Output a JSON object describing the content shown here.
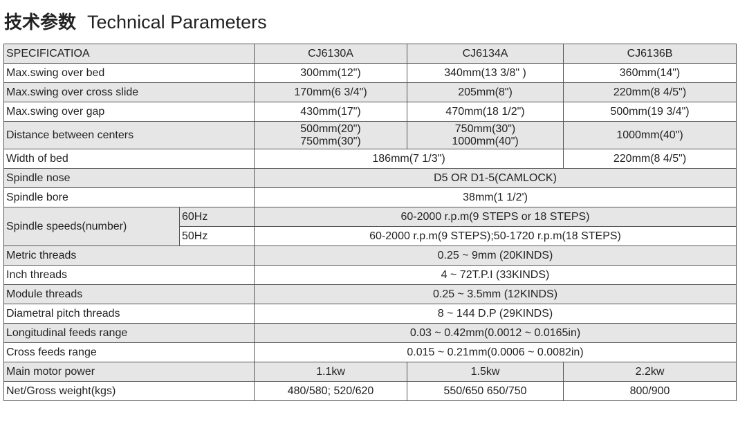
{
  "title": {
    "cn": "技术参数",
    "en": "Technical Parameters"
  },
  "header": {
    "label": "SPECIFICATIOA",
    "models": [
      "CJ6130A",
      "CJ6134A",
      "CJ6136B"
    ]
  },
  "rows": {
    "swing_bed": {
      "label": "Max.swing over bed",
      "values": [
        "300mm(12\")",
        "340mm(13 3/8\" )",
        "360mm(14\")"
      ]
    },
    "swing_cross": {
      "label": "Max.swing over cross slide",
      "values": [
        "170mm(6 3/4\")",
        "205mm(8\")",
        "220mm(8 4/5\")"
      ]
    },
    "swing_gap": {
      "label": "Max.swing over gap",
      "values": [
        "430mm(17\")",
        "470mm(18 1/2\")",
        "500mm(19 3/4\")"
      ]
    },
    "centers": {
      "label": "Distance between centers",
      "values": [
        [
          "500mm(20\")",
          "750mm(30\")"
        ],
        [
          "750mm(30\")",
          "1000mm(40\")"
        ],
        [
          "1000mm(40\")"
        ]
      ]
    },
    "bed_width": {
      "label": "Width of bed",
      "values": [
        "186mm(7 1/3\")",
        "220mm(8 4/5\")"
      ]
    },
    "spindle_nose": {
      "label": "Spindle nose",
      "value": "D5 OR D1-5(CAMLOCK)"
    },
    "spindle_bore": {
      "label": "Spindle bore",
      "value": "38mm(1 1/2')"
    },
    "spindle_speeds": {
      "label": "Spindle speeds(number)",
      "hz60": "60Hz",
      "v60": "60-2000 r.p.m(9 STEPS or 18 STEPS)",
      "hz50": "50Hz",
      "v50": "60-2000 r.p.m(9 STEPS);50-1720 r.p.m(18 STEPS)"
    },
    "metric": {
      "label": "Metric threads",
      "value": "0.25 ~ 9mm  (20KINDS)"
    },
    "inch": {
      "label": "Inch threads",
      "value": "4 ~ 72T.P.I  (33KINDS)"
    },
    "module": {
      "label": "Module threads",
      "value": "0.25 ~ 3.5mm  (12KINDS)"
    },
    "diametral": {
      "label": "Diametral pitch threads",
      "value": "8 ~ 144  D.P   (29KINDS)"
    },
    "long_feeds": {
      "label": "Longitudinal feeds range",
      "value": "0.03 ~ 0.42mm(0.0012 ~ 0.0165in)"
    },
    "cross_feeds": {
      "label": "Cross feeds range",
      "value": "0.015 ~ 0.21mm(0.0006 ~ 0.0082in)"
    },
    "motor": {
      "label": "Main motor power",
      "values": [
        "1.1kw",
        "1.5kw",
        "2.2kw"
      ]
    },
    "weight": {
      "label": "Net/Gross weight(kgs)",
      "values": [
        "480/580; 520/620",
        "550/650  650/750",
        "800/900"
      ]
    }
  }
}
